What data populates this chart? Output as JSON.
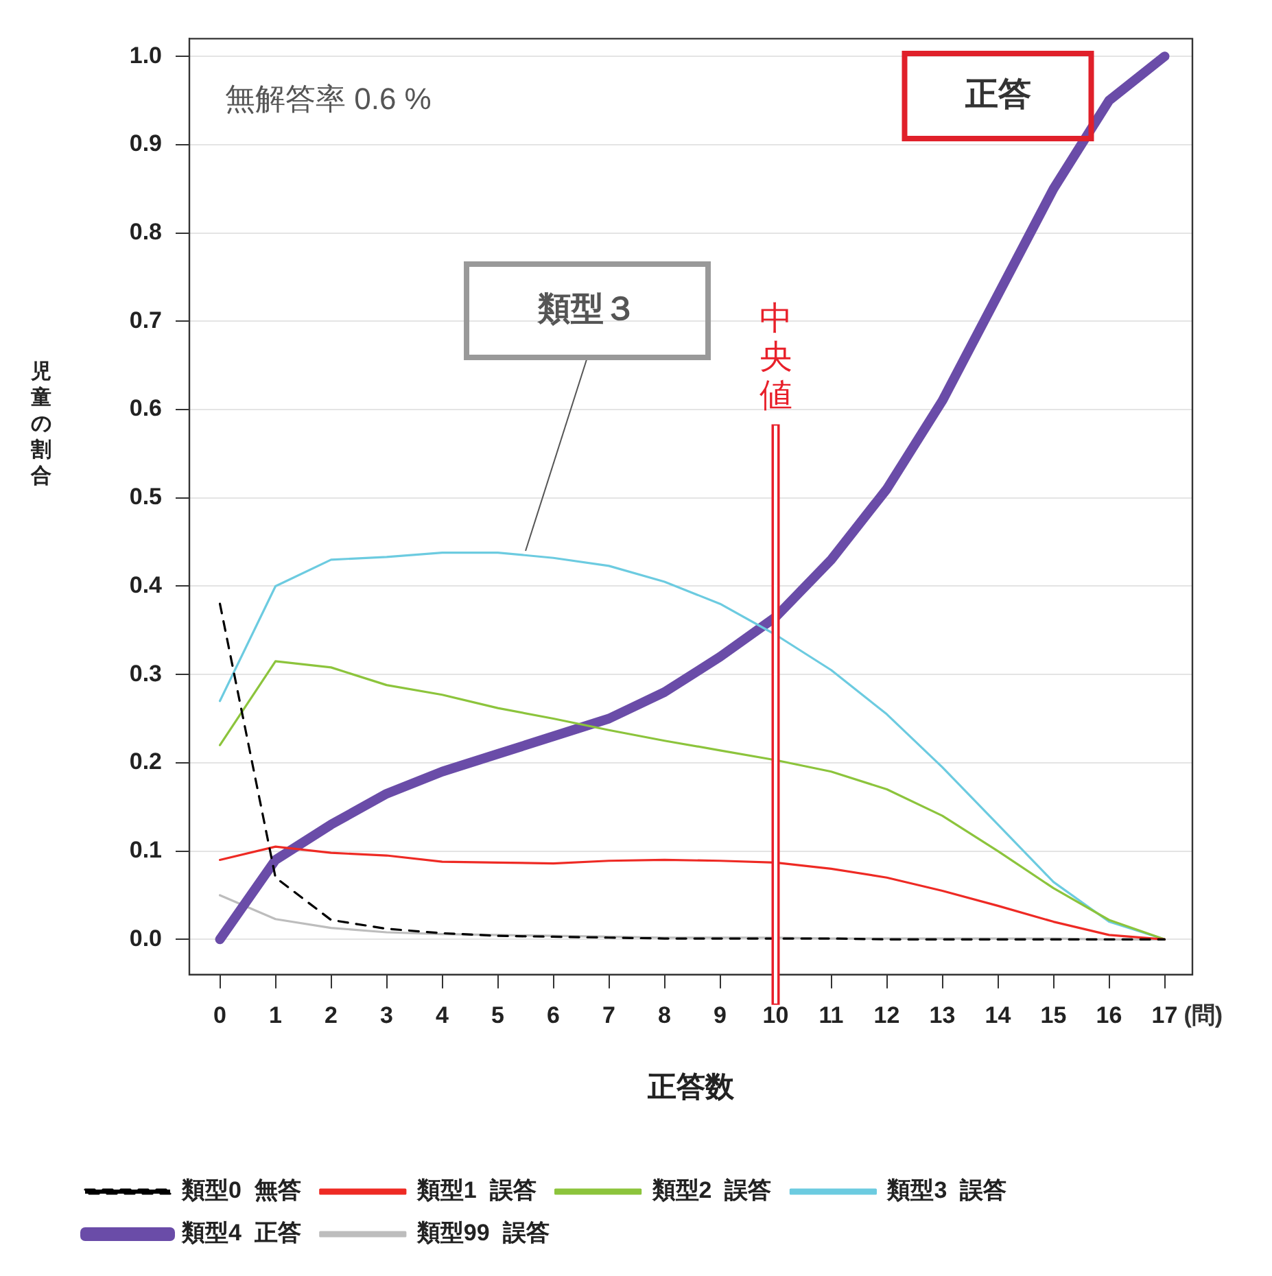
{
  "chart_data": {
    "type": "line",
    "xlabel": "正答数",
    "ylabel": "児童の割合",
    "x": [
      0,
      1,
      2,
      3,
      4,
      5,
      6,
      7,
      8,
      9,
      10,
      11,
      12,
      13,
      14,
      15,
      16,
      17
    ],
    "xlim": [
      -0.55,
      17.5
    ],
    "xticks": [
      0,
      1,
      2,
      3,
      4,
      5,
      6,
      7,
      8,
      9,
      10,
      11,
      12,
      13,
      14,
      15,
      16,
      17
    ],
    "ylim": [
      -0.04,
      1.02
    ],
    "yticks": [
      {
        "value": 0,
        "label": "0.0"
      },
      {
        "value": 0.1,
        "label": "0.1"
      },
      {
        "value": 0.2,
        "label": "0.2"
      },
      {
        "value": 0.3,
        "label": "0.3"
      },
      {
        "value": 0.4,
        "label": "0.4"
      },
      {
        "value": 0.5,
        "label": "0.5"
      },
      {
        "value": 0.6,
        "label": "0.6"
      },
      {
        "value": 0.7,
        "label": "0.7"
      },
      {
        "value": 0.8,
        "label": "0.8"
      },
      {
        "value": 0.9,
        "label": "0.9"
      },
      {
        "value": 1,
        "label": "1.0"
      }
    ],
    "grid": "y",
    "legend": "bottom",
    "marker": "none",
    "line_style": "solid",
    "series": [
      {
        "name": "類型0  無答",
        "color": "#000000",
        "line_style": "dashed",
        "values": [
          0.38,
          0.07,
          0.022,
          0.012,
          0.007,
          0.004,
          0.003,
          0.002,
          0.001,
          0.001,
          0.001,
          0.001,
          0,
          0,
          0,
          0,
          0,
          0
        ]
      },
      {
        "name": "類型1  誤答",
        "color": "#ee2a24",
        "values": [
          0.09,
          0.105,
          0.098,
          0.095,
          0.088,
          0.087,
          0.086,
          0.089,
          0.09,
          0.089,
          0.087,
          0.08,
          0.07,
          0.055,
          0.038,
          0.02,
          0.005,
          0
        ]
      },
      {
        "name": "類型2  誤答",
        "color": "#8cc43c",
        "values": [
          0.22,
          0.315,
          0.308,
          0.288,
          0.277,
          0.262,
          0.25,
          0.237,
          0.225,
          0.214,
          0.203,
          0.19,
          0.17,
          0.14,
          0.1,
          0.058,
          0.022,
          0
        ]
      },
      {
        "name": "類型3  誤答",
        "color": "#6ccbe0",
        "values": [
          0.27,
          0.4,
          0.43,
          0.433,
          0.438,
          0.438,
          0.432,
          0.423,
          0.405,
          0.38,
          0.345,
          0.305,
          0.255,
          0.195,
          0.13,
          0.065,
          0.02,
          0
        ]
      },
      {
        "name": "類型4  正答",
        "color": "#6a4ca8",
        "values": [
          0,
          0.09,
          0.13,
          0.165,
          0.19,
          0.21,
          0.23,
          0.25,
          0.28,
          0.32,
          0.365,
          0.43,
          0.51,
          0.61,
          0.73,
          0.85,
          0.95,
          1.0
        ]
      },
      {
        "name": "類型99  誤答",
        "color": "#bdbdbd",
        "values": [
          0.05,
          0.023,
          0.013,
          0.008,
          0.006,
          0.005,
          0.004,
          0.003,
          0.002,
          0.002,
          0.002,
          0.001,
          0.001,
          0.001,
          0.001,
          0.001,
          0,
          0
        ]
      }
    ],
    "ref_lines": [
      {
        "axis": "x",
        "value": 10,
        "label": "中央値",
        "color": "#e8202a"
      }
    ],
    "annotations": [
      "無解答率 0.6 %",
      "正答",
      "(問)",
      {
        "text": "類型３",
        "x": 5.5,
        "y": 0.44
      }
    ]
  }
}
